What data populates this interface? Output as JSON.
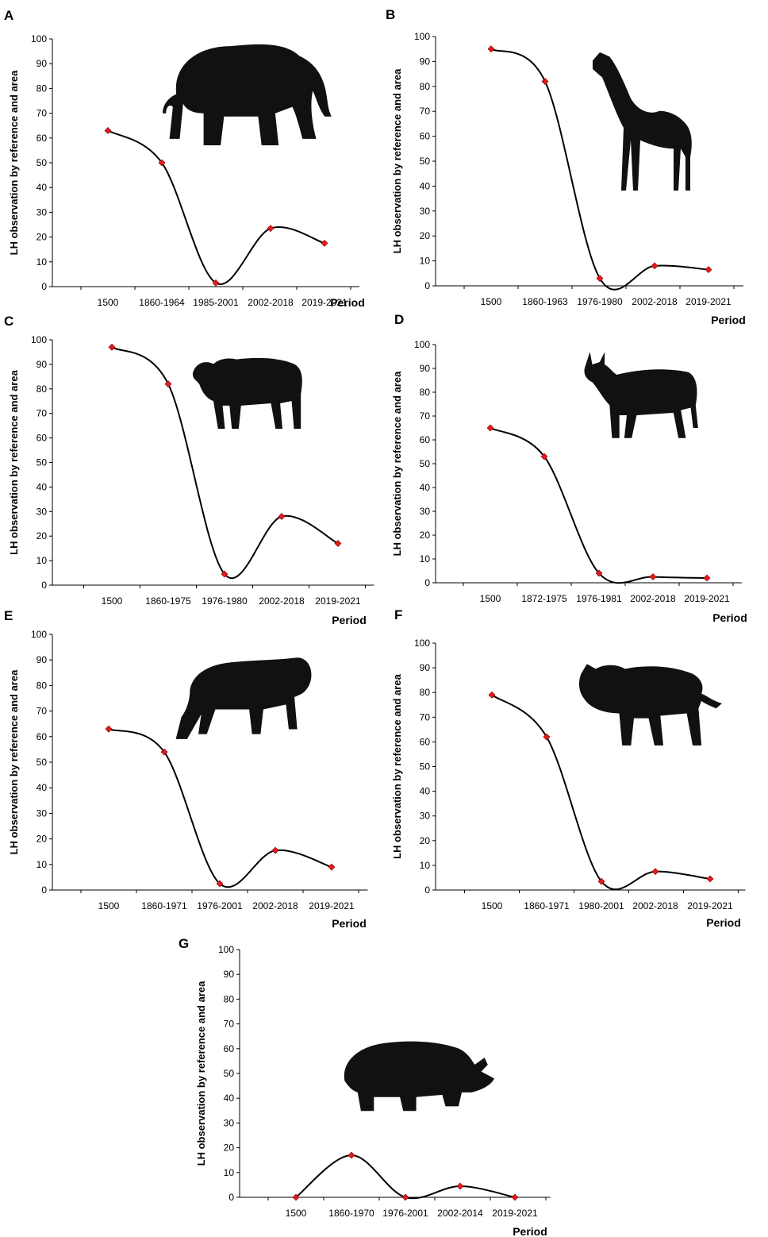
{
  "chart_data": [
    {
      "type": "line",
      "panel": "A",
      "animal_icon": "elephant-icon",
      "categories": [
        "1500",
        "1860-1964",
        "1985-2001",
        "2002-2018",
        "2019-2021"
      ],
      "values": [
        63,
        50,
        1.5,
        23.5,
        17.5
      ],
      "xlabel": "Period",
      "ylabel": "LH observation by reference and area",
      "ylim": [
        0,
        100
      ],
      "yticks": [
        0,
        10,
        20,
        30,
        40,
        50,
        60,
        70,
        80,
        90,
        100
      ],
      "grid": false,
      "smooth": true
    },
    {
      "type": "line",
      "panel": "B",
      "animal_icon": "giraffe-icon",
      "categories": [
        "1500",
        "1860-1963",
        "1976-1980",
        "2002-2018",
        "2019-2021"
      ],
      "values": [
        95,
        82,
        3,
        8,
        6.5
      ],
      "xlabel": "Period",
      "ylabel": "LH observation by reference and area",
      "ylim": [
        0,
        100
      ],
      "yticks": [
        0,
        10,
        20,
        30,
        40,
        50,
        60,
        70,
        80,
        90,
        100
      ],
      "grid": false,
      "smooth": true
    },
    {
      "type": "line",
      "panel": "C",
      "animal_icon": "buffalo-icon",
      "categories": [
        "1500",
        "1860-1975",
        "1976-1980",
        "2002-2018",
        "2019-2021"
      ],
      "values": [
        97,
        82,
        4.5,
        28,
        17
      ],
      "xlabel": "Period",
      "ylabel": "LH observation by reference and area",
      "ylim": [
        0,
        100
      ],
      "yticks": [
        0,
        10,
        20,
        30,
        40,
        50,
        60,
        70,
        80,
        90,
        100
      ],
      "grid": false,
      "smooth": true
    },
    {
      "type": "line",
      "panel": "D",
      "animal_icon": "eland-icon",
      "categories": [
        "1500",
        "1872-1975",
        "1976-1981",
        "2002-2018",
        "2019-2021"
      ],
      "values": [
        65,
        53,
        4,
        2.5,
        2
      ],
      "xlabel": "Period",
      "ylabel": "LH observation by reference and area",
      "ylim": [
        0,
        100
      ],
      "yticks": [
        0,
        10,
        20,
        30,
        40,
        50,
        60,
        70,
        80,
        90,
        100
      ],
      "grid": false,
      "smooth": true
    },
    {
      "type": "line",
      "panel": "E",
      "animal_icon": "zebra-icon",
      "categories": [
        "1500",
        "1860-1971",
        "1976-2001",
        "2002-2018",
        "2019-2021"
      ],
      "values": [
        63,
        54,
        2.5,
        15.5,
        9
      ],
      "xlabel": "Period",
      "ylabel": "LH observation by reference and area",
      "ylim": [
        0,
        100
      ],
      "yticks": [
        0,
        10,
        20,
        30,
        40,
        50,
        60,
        70,
        80,
        90,
        100
      ],
      "grid": false,
      "smooth": true
    },
    {
      "type": "line",
      "panel": "F",
      "animal_icon": "wildebeest-icon",
      "categories": [
        "1500",
        "1860-1971",
        "1980-2001",
        "2002-2018",
        "2019-2021"
      ],
      "values": [
        79,
        62,
        3.5,
        7.5,
        4.5
      ],
      "xlabel": "Period",
      "ylabel": "LH observation by reference and area",
      "ylim": [
        0,
        100
      ],
      "yticks": [
        0,
        10,
        20,
        30,
        40,
        50,
        60,
        70,
        80,
        90,
        100
      ],
      "grid": false,
      "smooth": true
    },
    {
      "type": "line",
      "panel": "G",
      "animal_icon": "rhino-icon",
      "categories": [
        "1500",
        "1860-1970",
        "1976-2001",
        "2002-2014",
        "2019-2021"
      ],
      "values": [
        0,
        17,
        0,
        4.5,
        0
      ],
      "xlabel": "Period",
      "ylabel": "LH observation by reference and area",
      "ylim": [
        0,
        100
      ],
      "yticks": [
        0,
        10,
        20,
        30,
        40,
        50,
        60,
        70,
        80,
        90,
        100
      ],
      "grid": false,
      "smooth": true
    }
  ],
  "colors": {
    "line": "#000000",
    "marker": "#e31a1c",
    "marker_stroke": "#8b0000",
    "axis": "#000000",
    "animal": "#111111"
  }
}
